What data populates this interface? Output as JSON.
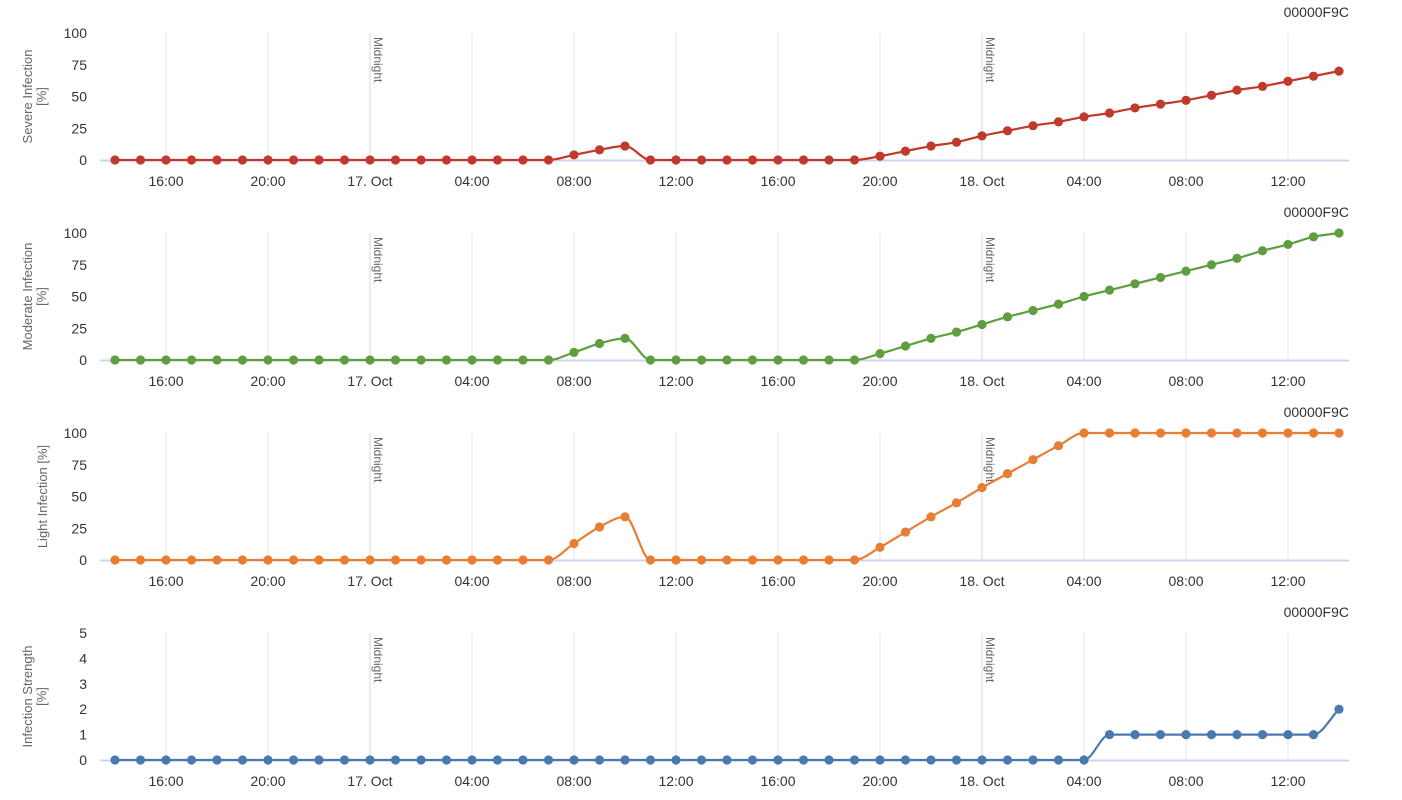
{
  "x_ticks": [
    "16:00",
    "20:00",
    "17. Oct",
    "04:00",
    "08:00",
    "12:00",
    "16:00",
    "20:00",
    "18. Oct",
    "04:00",
    "08:00",
    "12:00"
  ],
  "midnight_label": "Midnight",
  "chart_data": [
    {
      "type": "line",
      "id_label": "00000F9C",
      "ylabel": [
        "Severe Infection",
        "[%]"
      ],
      "ylim": [
        0,
        100
      ],
      "yticks": [
        0,
        25,
        50,
        75,
        100
      ],
      "grid": true,
      "x_start": "16 Oct 14:00",
      "x_step": "1 hour",
      "series": [
        {
          "color": "#c0392b",
          "values": [
            0,
            0,
            0,
            0,
            0,
            0,
            0,
            0,
            0,
            0,
            0,
            0,
            0,
            0,
            0,
            0,
            0,
            0,
            4,
            8,
            11,
            0,
            0,
            0,
            0,
            0,
            0,
            0,
            0,
            0,
            3,
            7,
            11,
            14,
            19,
            23,
            27,
            30,
            34,
            37,
            41,
            44,
            47,
            51,
            55,
            58,
            62,
            66,
            70
          ]
        }
      ]
    },
    {
      "type": "line",
      "id_label": "00000F9C",
      "ylabel": [
        "Moderate Infection",
        "[%]"
      ],
      "ylim": [
        0,
        100
      ],
      "yticks": [
        0,
        25,
        50,
        75,
        100
      ],
      "grid": true,
      "x_start": "16 Oct 14:00",
      "x_step": "1 hour",
      "series": [
        {
          "color": "#5f9e3f",
          "values": [
            0,
            0,
            0,
            0,
            0,
            0,
            0,
            0,
            0,
            0,
            0,
            0,
            0,
            0,
            0,
            0,
            0,
            0,
            6,
            13,
            17,
            0,
            0,
            0,
            0,
            0,
            0,
            0,
            0,
            0,
            5,
            11,
            17,
            22,
            28,
            34,
            39,
            44,
            50,
            55,
            60,
            65,
            70,
            75,
            80,
            86,
            91,
            97,
            100
          ]
        }
      ]
    },
    {
      "type": "line",
      "id_label": "00000F9C",
      "ylabel": [
        "Light Infection [%]"
      ],
      "ylim": [
        0,
        100
      ],
      "yticks": [
        0,
        25,
        50,
        75,
        100
      ],
      "grid": true,
      "x_start": "16 Oct 14:00",
      "x_step": "1 hour",
      "series": [
        {
          "color": "#e67e33",
          "values": [
            0,
            0,
            0,
            0,
            0,
            0,
            0,
            0,
            0,
            0,
            0,
            0,
            0,
            0,
            0,
            0,
            0,
            0,
            13,
            26,
            34,
            0,
            0,
            0,
            0,
            0,
            0,
            0,
            0,
            0,
            10,
            22,
            34,
            45,
            57,
            68,
            79,
            90,
            100,
            100,
            100,
            100,
            100,
            100,
            100,
            100,
            100,
            100,
            100
          ]
        }
      ]
    },
    {
      "type": "line",
      "id_label": "00000F9C",
      "ylabel": [
        "Infection Strength",
        "[%]"
      ],
      "ylim": [
        0,
        5
      ],
      "yticks": [
        0,
        1,
        2,
        3,
        4,
        5
      ],
      "grid": true,
      "x_start": "16 Oct 14:00",
      "x_step": "1 hour",
      "series": [
        {
          "color": "#4a78b0",
          "values": [
            0,
            0,
            0,
            0,
            0,
            0,
            0,
            0,
            0,
            0,
            0,
            0,
            0,
            0,
            0,
            0,
            0,
            0,
            0,
            0,
            0,
            0,
            0,
            0,
            0,
            0,
            0,
            0,
            0,
            0,
            0,
            0,
            0,
            0,
            0,
            0,
            0,
            0,
            0,
            1,
            1,
            1,
            1,
            1,
            1,
            1,
            1,
            1,
            2
          ]
        }
      ]
    }
  ]
}
